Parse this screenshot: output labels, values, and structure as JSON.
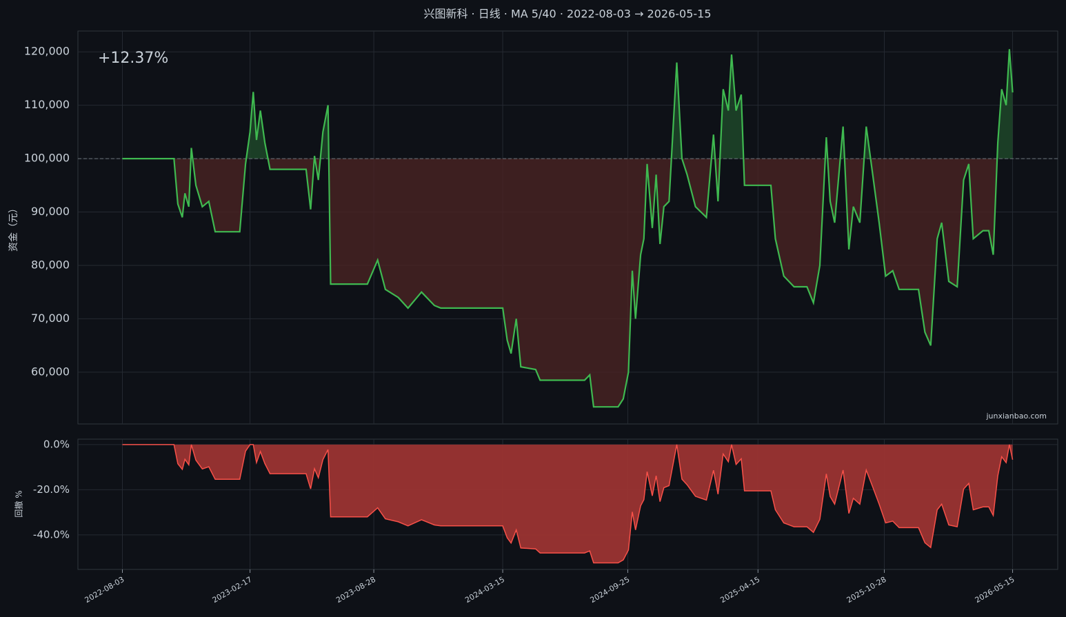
{
  "chart_data": [
    {
      "type": "equity",
      "title": "兴图新科 · 日线 · MA 5/40 · 2022-08-03 → 2026-05-15",
      "ylabel": "资金（元）",
      "annotation": "+12.37%",
      "watermark": "junxianbao.com",
      "color": "#3fb950",
      "fill_above": "#1f4a2a",
      "fill_below": "#4a2323",
      "baseline": 100000,
      "grid": true,
      "x": [
        "2022-08-03",
        "2022-10-22",
        "2022-10-28",
        "2022-11-04",
        "2022-11-08",
        "2022-11-14",
        "2022-11-18",
        "2022-11-25",
        "2022-12-05",
        "2022-12-15",
        "2022-12-25",
        "2023-02-01",
        "2023-02-10",
        "2023-02-17",
        "2023-02-22",
        "2023-02-27",
        "2023-03-05",
        "2023-03-12",
        "2023-03-20",
        "2023-05-15",
        "2023-05-22",
        "2023-05-28",
        "2023-06-03",
        "2023-06-10",
        "2023-06-18",
        "2023-06-22",
        "2023-08-18",
        "2023-09-03",
        "2023-09-15",
        "2023-10-05",
        "2023-10-20",
        "2023-11-10",
        "2023-11-30",
        "2023-12-10",
        "2024-03-15",
        "2024-03-22",
        "2024-03-28",
        "2024-04-05",
        "2024-04-12",
        "2024-05-05",
        "2024-05-12",
        "2024-07-20",
        "2024-07-28",
        "2024-08-03",
        "2024-09-10",
        "2024-09-18",
        "2024-09-26",
        "2024-10-02",
        "2024-10-07",
        "2024-10-15",
        "2024-10-20",
        "2024-10-25",
        "2024-11-02",
        "2024-11-08",
        "2024-11-14",
        "2024-11-20",
        "2024-11-28",
        "2024-12-10",
        "2024-12-18",
        "2024-12-26",
        "2025-01-08",
        "2025-01-25",
        "2025-02-05",
        "2025-02-12",
        "2025-02-20",
        "2025-02-28",
        "2025-03-05",
        "2025-03-12",
        "2025-03-20",
        "2025-03-25",
        "2025-05-05",
        "2025-05-12",
        "2025-05-25",
        "2025-06-10",
        "2025-06-30",
        "2025-07-10",
        "2025-07-20",
        "2025-07-30",
        "2025-08-05",
        "2025-08-12",
        "2025-08-25",
        "2025-09-03",
        "2025-09-10",
        "2025-09-20",
        "2025-09-30",
        "2025-10-10",
        "2025-10-20",
        "2025-10-30",
        "2025-11-10",
        "2025-11-20",
        "2025-12-20",
        "2025-12-30",
        "2026-01-08",
        "2026-01-18",
        "2026-01-25",
        "2026-02-05",
        "2026-02-18",
        "2026-02-28",
        "2026-03-08",
        "2026-03-15",
        "2026-03-30",
        "2026-04-08",
        "2026-04-15",
        "2026-04-22",
        "2026-04-28",
        "2026-05-05",
        "2026-05-10",
        "2026-05-15"
      ],
      "values": [
        100000,
        100000,
        91500,
        89000,
        93500,
        91000,
        102000,
        95000,
        91000,
        92000,
        86300,
        86300,
        99000,
        105000,
        112500,
        103500,
        109000,
        103000,
        98000,
        98000,
        90500,
        100500,
        96000,
        105000,
        110000,
        76500,
        76500,
        81000,
        75500,
        74000,
        72000,
        75000,
        72500,
        72000,
        72000,
        66000,
        63500,
        70000,
        61000,
        60500,
        58500,
        58500,
        59500,
        53500,
        53500,
        55000,
        60000,
        79000,
        70000,
        82000,
        85000,
        99000,
        87000,
        97000,
        84000,
        91000,
        92000,
        118000,
        100000,
        97000,
        91000,
        89000,
        104500,
        92000,
        113000,
        109000,
        119500,
        109000,
        112000,
        95000,
        95000,
        85000,
        78000,
        76000,
        76000,
        73000,
        80000,
        104000,
        92000,
        88000,
        106000,
        83000,
        91000,
        88000,
        106000,
        97000,
        88000,
        78000,
        79000,
        75500,
        75500,
        67500,
        65000,
        85000,
        88000,
        77000,
        76000,
        96000,
        99000,
        85000,
        86500,
        86500,
        82000,
        103000,
        113000,
        110000,
        120500,
        112400
      ],
      "xlim": [
        "2022-05-26",
        "2026-07-24"
      ],
      "xticks": [
        "2022-08-03",
        "2023-02-17",
        "2023-08-28",
        "2024-03-15",
        "2024-09-25",
        "2025-04-15",
        "2025-10-28",
        "2026-05-15"
      ],
      "ylim": [
        50300,
        123900
      ],
      "yticks": [
        {
          "value": 60000,
          "label": "60,000"
        },
        {
          "value": 70000,
          "label": "70,000"
        },
        {
          "value": 80000,
          "label": "80,000"
        },
        {
          "value": 90000,
          "label": "90,000"
        },
        {
          "value": 100000,
          "label": "100,000"
        },
        {
          "value": 110000,
          "label": "110,000"
        },
        {
          "value": 120000,
          "label": "120,000"
        }
      ]
    },
    {
      "type": "drawdown",
      "ylabel": "回撤 %",
      "color": "#f85149",
      "fill": "#9b3431",
      "grid": true,
      "x": [
        "2022-08-03",
        "2022-10-22",
        "2022-10-28",
        "2022-11-04",
        "2022-11-08",
        "2022-11-14",
        "2022-11-18",
        "2022-11-25",
        "2022-12-05",
        "2022-12-15",
        "2022-12-25",
        "2023-02-01",
        "2023-02-10",
        "2023-02-17",
        "2023-02-22",
        "2023-02-27",
        "2023-03-05",
        "2023-03-12",
        "2023-03-20",
        "2023-05-15",
        "2023-05-22",
        "2023-05-28",
        "2023-06-03",
        "2023-06-10",
        "2023-06-18",
        "2023-06-22",
        "2023-08-18",
        "2023-09-03",
        "2023-09-15",
        "2023-10-05",
        "2023-10-20",
        "2023-11-10",
        "2023-11-30",
        "2023-12-10",
        "2024-03-15",
        "2024-03-22",
        "2024-03-28",
        "2024-04-05",
        "2024-04-12",
        "2024-05-05",
        "2024-05-12",
        "2024-07-20",
        "2024-07-28",
        "2024-08-03",
        "2024-09-10",
        "2024-09-18",
        "2024-09-26",
        "2024-10-02",
        "2024-10-07",
        "2024-10-15",
        "2024-10-20",
        "2024-10-25",
        "2024-11-02",
        "2024-11-08",
        "2024-11-14",
        "2024-11-20",
        "2024-11-28",
        "2024-12-10",
        "2024-12-18",
        "2024-12-26",
        "2025-01-08",
        "2025-01-25",
        "2025-02-05",
        "2025-02-12",
        "2025-02-20",
        "2025-02-28",
        "2025-03-05",
        "2025-03-12",
        "2025-03-20",
        "2025-03-25",
        "2025-05-05",
        "2025-05-12",
        "2025-05-25",
        "2025-06-10",
        "2025-06-30",
        "2025-07-10",
        "2025-07-20",
        "2025-07-30",
        "2025-08-05",
        "2025-08-12",
        "2025-08-25",
        "2025-09-03",
        "2025-09-10",
        "2025-09-20",
        "2025-09-30",
        "2025-10-10",
        "2025-10-20",
        "2025-10-30",
        "2025-11-10",
        "2025-11-20",
        "2025-12-20",
        "2025-12-30",
        "2026-01-08",
        "2026-01-18",
        "2026-01-25",
        "2026-02-05",
        "2026-02-18",
        "2026-02-28",
        "2026-03-08",
        "2026-03-15",
        "2026-03-30",
        "2026-04-08",
        "2026-04-15",
        "2026-04-22",
        "2026-04-28",
        "2026-05-05",
        "2026-05-10",
        "2026-05-15"
      ],
      "values": [
        0,
        0,
        -8.5,
        -11,
        -6.5,
        -9,
        0,
        -6.9,
        -10.8,
        -9.8,
        -15.4,
        -15.4,
        -2.9,
        0,
        0,
        -8,
        -3.1,
        -8.4,
        -12.9,
        -12.9,
        -19.6,
        -10.7,
        -14.7,
        -6.7,
        -2.2,
        -32,
        -32,
        -28,
        -32.9,
        -34.2,
        -36,
        -33.3,
        -35.6,
        -36,
        -36,
        -41.3,
        -43.6,
        -37.8,
        -45.8,
        -46.2,
        -48,
        -48,
        -47.1,
        -52.4,
        -52.4,
        -51.1,
        -46.7,
        -29.8,
        -37.8,
        -27.1,
        -24.4,
        -12,
        -22.7,
        -13.8,
        -25.3,
        -19.1,
        -18.2,
        0,
        -15.3,
        -17.8,
        -22.9,
        -24.6,
        -11.4,
        -22,
        -4.2,
        -7.6,
        0,
        -8.8,
        -6.3,
        -20.5,
        -20.5,
        -28.9,
        -34.7,
        -36.4,
        -36.4,
        -38.9,
        -33.1,
        -13,
        -23,
        -26.4,
        -11.3,
        -30.5,
        -23.8,
        -26.4,
        -11.3,
        -18.8,
        -26.4,
        -34.7,
        -33.9,
        -36.8,
        -36.8,
        -43.5,
        -45.6,
        -28.9,
        -26.4,
        -35.6,
        -36.4,
        -19.7,
        -17.2,
        -28.9,
        -27.6,
        -27.6,
        -31.4,
        -13.8,
        -5.4,
        -8,
        0,
        -6.7
      ],
      "xlim": [
        "2022-05-26",
        "2026-07-24"
      ],
      "xticks": [
        "2022-08-03",
        "2023-02-17",
        "2023-08-28",
        "2024-03-15",
        "2024-09-25",
        "2025-04-15",
        "2025-10-28",
        "2026-05-15"
      ],
      "ylim": [
        -55.3,
        2.4
      ],
      "yticks": [
        {
          "value": 0,
          "label": "0.0%"
        },
        {
          "value": -20,
          "label": "-20.0%"
        },
        {
          "value": -40,
          "label": "-40.0%"
        }
      ]
    }
  ]
}
